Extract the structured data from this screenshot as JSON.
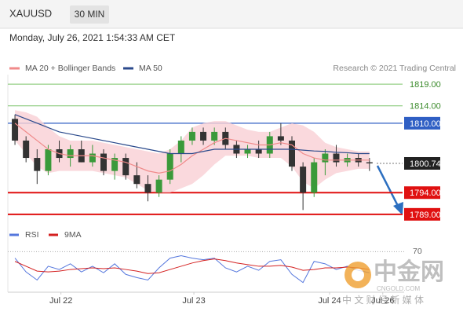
{
  "header": {
    "symbol": "XAUUSD",
    "timeframe": "30 MIN",
    "datetime": "Monday, July 26, 2021 1:54:33 AM CET"
  },
  "chart_data": [
    {
      "type": "candlestick",
      "credit": "Research © 2021 Trading Central",
      "x": [
        1,
        3,
        5,
        7,
        9,
        11,
        13,
        15,
        17,
        19,
        21,
        23,
        25,
        27,
        29,
        31,
        33,
        35,
        37,
        39,
        41,
        43,
        45,
        47,
        49,
        51,
        53,
        55,
        57,
        59,
        61,
        63,
        65
      ],
      "open": [
        1811,
        1806,
        1802,
        1799,
        1804,
        1802,
        1804,
        1801,
        1803,
        1799,
        1802,
        1798,
        1796,
        1794,
        1797,
        1803,
        1806,
        1808,
        1806,
        1808,
        1805,
        1803,
        1804,
        1803,
        1807,
        1806,
        1800,
        1794,
        1801,
        1803,
        1801,
        1802,
        1801
      ],
      "high": [
        1812,
        1807,
        1804,
        1805,
        1806,
        1805,
        1806,
        1805,
        1804,
        1803,
        1803,
        1801,
        1798,
        1798,
        1804,
        1807,
        1809,
        1809,
        1809,
        1809,
        1806,
        1805,
        1806,
        1808,
        1810,
        1807,
        1801,
        1802,
        1804,
        1805,
        1803,
        1803,
        1802
      ],
      "low": [
        1805,
        1801,
        1796,
        1798,
        1801,
        1800,
        1801,
        1800,
        1798,
        1797,
        1797,
        1795,
        1792,
        1793,
        1796,
        1801,
        1805,
        1805,
        1805,
        1804,
        1802,
        1802,
        1802,
        1802,
        1805,
        1799,
        1790,
        1793,
        1798,
        1800,
        1800,
        1800,
        1799
      ],
      "close": [
        1806,
        1802,
        1799,
        1804,
        1802,
        1804,
        1801,
        1803,
        1799,
        1802,
        1798,
        1796,
        1794,
        1797,
        1803,
        1806,
        1808,
        1806,
        1808,
        1805,
        1803,
        1804,
        1803,
        1807,
        1806,
        1800,
        1794,
        1801,
        1803,
        1801,
        1802,
        1801,
        1800.74
      ],
      "up_color": "#3a9a3a",
      "down_color": "#333333",
      "series": [
        {
          "name": "MA 20 + Bollinger Bands",
          "color": "#f08a8a",
          "band_color": "#f9d0d4",
          "values": [
            1810,
            1808,
            1806,
            1804,
            1803,
            1802.5,
            1802.5,
            1802.5,
            1802,
            1801.5,
            1801,
            1800,
            1799,
            1798.5,
            1799,
            1800.5,
            1802.5,
            1804,
            1805.5,
            1806.5,
            1806,
            1805.5,
            1805,
            1805,
            1805.5,
            1805,
            1803,
            1802,
            1801.5,
            1801.5,
            1801.5,
            1801.5,
            1801.5
          ],
          "upper": [
            1813,
            1812.5,
            1811.5,
            1809,
            1807,
            1806,
            1806,
            1806,
            1805.5,
            1805,
            1804.5,
            1804,
            1803.5,
            1803,
            1804,
            1806,
            1809,
            1810,
            1810.5,
            1810.5,
            1809.5,
            1808.5,
            1808,
            1808,
            1809,
            1810,
            1809.5,
            1808,
            1805.5,
            1804.5,
            1804,
            1803.5,
            1803.5
          ],
          "lower": [
            1806,
            1803,
            1800,
            1798.5,
            1799,
            1799,
            1799,
            1799,
            1798.5,
            1798,
            1797.5,
            1796,
            1794.5,
            1794,
            1794,
            1795,
            1796,
            1798,
            1800.5,
            1802.5,
            1802.5,
            1802.5,
            1802,
            1802,
            1802,
            1800,
            1796.5,
            1795,
            1797,
            1798.5,
            1799,
            1799.5,
            1799.5
          ]
        },
        {
          "name": "MA 50",
          "color": "#2b4a8c",
          "values": [
            1812,
            1811,
            1810,
            1809,
            1808,
            1807.5,
            1807,
            1806.5,
            1806,
            1805.5,
            1805,
            1804.5,
            1804,
            1803.5,
            1803,
            1803,
            1803,
            1803.5,
            1804,
            1804,
            1804,
            1804,
            1804,
            1804,
            1804,
            1804,
            1803.8,
            1803.6,
            1803.5,
            1803.3,
            1803.2,
            1803,
            1803
          ]
        }
      ],
      "levels": [
        {
          "value": 1819,
          "label": "1819.00",
          "color": "#7cc46a",
          "boxed": false
        },
        {
          "value": 1814,
          "label": "1814.00",
          "color": "#7cc46a",
          "boxed": false
        },
        {
          "value": 1810,
          "label": "1810.00",
          "color": "#2f5fc4",
          "boxed": true
        },
        {
          "value": 1800.74,
          "color": "#222222",
          "boxed": true,
          "dashed": true
        },
        {
          "value": 1794,
          "label": "1794.00",
          "color": "#e01010",
          "boxed": true
        },
        {
          "value": 1789,
          "label": "1789.00",
          "color": "#e01010",
          "boxed": true
        }
      ],
      "xlim": [
        0,
        68
      ],
      "ylim": [
        1786.8,
        1821.2
      ]
    },
    {
      "type": "line",
      "x": [
        1,
        3,
        5,
        7,
        9,
        11,
        13,
        15,
        17,
        19,
        21,
        23,
        25,
        27,
        29,
        31,
        33,
        35,
        37,
        39,
        41,
        43,
        45,
        47,
        49,
        51,
        53,
        55,
        57,
        59,
        61,
        63,
        65
      ],
      "series": [
        {
          "name": "RSI",
          "color": "#5577dd",
          "values": [
            62,
            45,
            35,
            52,
            48,
            55,
            45,
            52,
            44,
            55,
            42,
            38,
            35,
            50,
            62,
            65,
            62,
            60,
            62,
            50,
            45,
            52,
            47,
            58,
            60,
            42,
            32,
            58,
            55,
            48,
            52,
            47,
            44
          ]
        },
        {
          "name": "9MA",
          "color": "#d42020",
          "values": [
            58,
            52,
            46,
            45,
            46,
            48,
            49,
            50,
            49,
            50,
            48,
            46,
            43,
            44,
            48,
            52,
            56,
            59,
            61,
            59,
            56,
            54,
            52,
            52,
            53,
            51,
            47,
            48,
            50,
            50,
            51,
            50,
            48
          ]
        }
      ],
      "xlim": [
        0,
        68
      ],
      "ylim": [
        20,
        80
      ],
      "yticks": [
        70
      ],
      "xticks": [
        {
          "value": 9.3,
          "label": "Jul 22"
        },
        {
          "value": 33.3,
          "label": "Jul 23"
        },
        {
          "value": 57.8,
          "label": "Jul 24"
        },
        {
          "value": 67.4,
          "label": "Jul 26"
        }
      ]
    }
  ],
  "watermark": {
    "logo": "中金网",
    "site": "CNGOLD.COM",
    "slogan": "中 文 财 经 新 媒 体"
  }
}
